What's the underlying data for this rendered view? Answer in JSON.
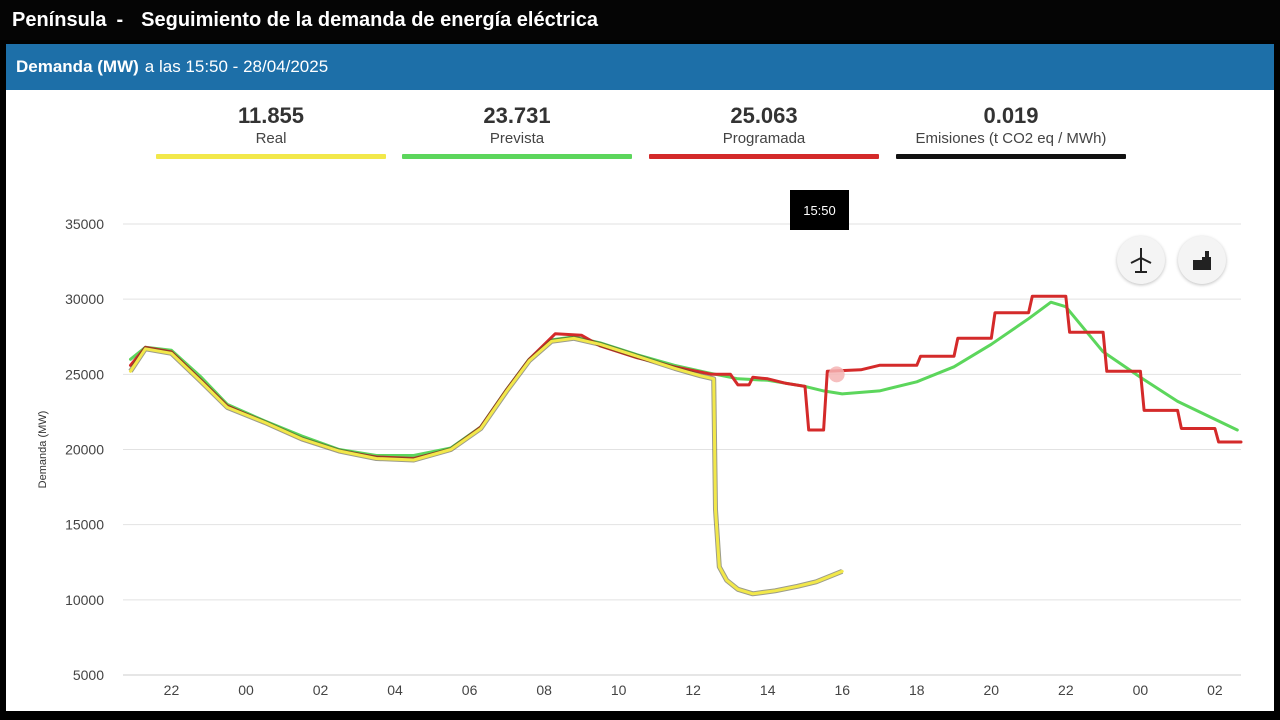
{
  "window": {
    "region": "Península",
    "separator": "-",
    "title": "Seguimiento de la demanda de energía eléctrica"
  },
  "header": {
    "bold": "Demanda (MW)",
    "rest": "a las 15:50 - 28/04/2025"
  },
  "kpis": [
    {
      "value": "11.855",
      "label": "Real",
      "color": "#f2e84a"
    },
    {
      "value": "23.731",
      "label": "Prevista",
      "color": "#5cd65c"
    },
    {
      "value": "25.063",
      "label": "Programada",
      "color": "#d42a2a"
    },
    {
      "value": "0.019",
      "label": "Emisiones (t CO2 eq / MWh)",
      "color": "#111111"
    }
  ],
  "tooltip": {
    "text": "15:50"
  },
  "icons": {
    "left": "wind-turbine-icon",
    "right": "factory-icon"
  },
  "chart_data": {
    "type": "line",
    "ylabel": "Demanda (MW)",
    "ylim": [
      5000,
      35000
    ],
    "yticks": [
      5000,
      10000,
      15000,
      20000,
      25000,
      30000,
      35000
    ],
    "xlim": [
      -3.3,
      26.7
    ],
    "xticks": [
      {
        "h": -2,
        "label": "22"
      },
      {
        "h": 0,
        "label": "00"
      },
      {
        "h": 2,
        "label": "02"
      },
      {
        "h": 4,
        "label": "04"
      },
      {
        "h": 6,
        "label": "06"
      },
      {
        "h": 8,
        "label": "08"
      },
      {
        "h": 10,
        "label": "10"
      },
      {
        "h": 12,
        "label": "12"
      },
      {
        "h": 14,
        "label": "14"
      },
      {
        "h": 16,
        "label": "16"
      },
      {
        "h": 18,
        "label": "18"
      },
      {
        "h": 20,
        "label": "20"
      },
      {
        "h": 22,
        "label": "22"
      },
      {
        "h": 24,
        "label": "00"
      },
      {
        "h": 26,
        "label": "02"
      }
    ],
    "x_unit": "hours from 00:00 on 28/04/2025",
    "grid": true,
    "series": [
      {
        "name": "Prevista",
        "color": "#5cd65c",
        "points": [
          [
            -3.1,
            26000
          ],
          [
            -2.7,
            26800
          ],
          [
            -2,
            26600
          ],
          [
            -1.2,
            24800
          ],
          [
            -0.5,
            23000
          ],
          [
            0.5,
            21900
          ],
          [
            1.5,
            20900
          ],
          [
            2.5,
            20000
          ],
          [
            3.5,
            19600
          ],
          [
            4.5,
            19600
          ],
          [
            5.5,
            20100
          ],
          [
            6.3,
            21500
          ],
          [
            7,
            24000
          ],
          [
            7.6,
            26000
          ],
          [
            8.2,
            27300
          ],
          [
            8.8,
            27500
          ],
          [
            9.5,
            27100
          ],
          [
            10.5,
            26300
          ],
          [
            11.5,
            25600
          ],
          [
            12.4,
            25100
          ],
          [
            13.2,
            24700
          ],
          [
            14,
            24600
          ],
          [
            15,
            24200
          ],
          [
            15.5,
            23900
          ],
          [
            16,
            23700
          ],
          [
            17,
            23900
          ],
          [
            18,
            24500
          ],
          [
            19,
            25500
          ],
          [
            20,
            27000
          ],
          [
            21,
            28700
          ],
          [
            21.6,
            29800
          ],
          [
            22,
            29500
          ],
          [
            23,
            26500
          ],
          [
            24,
            24800
          ],
          [
            25,
            23200
          ],
          [
            26.6,
            21300
          ]
        ]
      },
      {
        "name": "Programada",
        "color": "#d42a2a",
        "points": [
          [
            -3.1,
            25600
          ],
          [
            -2.7,
            26800
          ],
          [
            -2,
            26500
          ],
          [
            -1.2,
            24600
          ],
          [
            -0.5,
            22900
          ],
          [
            0.5,
            21800
          ],
          [
            1.5,
            20700
          ],
          [
            2.5,
            19900
          ],
          [
            3.5,
            19500
          ],
          [
            4.5,
            19400
          ],
          [
            5.5,
            20000
          ],
          [
            6.3,
            21500
          ],
          [
            7,
            24000
          ],
          [
            7.6,
            26000
          ],
          [
            8.3,
            27700
          ],
          [
            9,
            27600
          ],
          [
            9.5,
            26900
          ],
          [
            10.5,
            26100
          ],
          [
            11.5,
            25500
          ],
          [
            12.5,
            25000
          ],
          [
            13,
            25000
          ],
          [
            13.2,
            24300
          ],
          [
            13.5,
            24300
          ],
          [
            13.6,
            24800
          ],
          [
            14,
            24700
          ],
          [
            14.5,
            24400
          ],
          [
            15,
            24200
          ],
          [
            15.1,
            21300
          ],
          [
            15.5,
            21300
          ],
          [
            15.6,
            25200
          ],
          [
            16.5,
            25300
          ],
          [
            17,
            25600
          ],
          [
            18,
            25600
          ],
          [
            18.1,
            26200
          ],
          [
            19,
            26200
          ],
          [
            19.1,
            27400
          ],
          [
            20,
            27400
          ],
          [
            20.1,
            29100
          ],
          [
            21,
            29100
          ],
          [
            21.1,
            30200
          ],
          [
            22,
            30200
          ],
          [
            22.1,
            27800
          ],
          [
            23,
            27800
          ],
          [
            23.1,
            25200
          ],
          [
            24,
            25200
          ],
          [
            24.1,
            22600
          ],
          [
            25,
            22600
          ],
          [
            25.1,
            21400
          ],
          [
            26,
            21400
          ],
          [
            26.1,
            20500
          ],
          [
            26.7,
            20500
          ]
        ]
      },
      {
        "name": "Real",
        "color": "#f2e84a",
        "points": [
          [
            -3.1,
            25200
          ],
          [
            -2.7,
            26700
          ],
          [
            -2,
            26400
          ],
          [
            -1.2,
            24500
          ],
          [
            -0.5,
            22800
          ],
          [
            0.5,
            21800
          ],
          [
            1.5,
            20700
          ],
          [
            2.5,
            19900
          ],
          [
            3.5,
            19400
          ],
          [
            4.5,
            19300
          ],
          [
            5.5,
            20000
          ],
          [
            6.3,
            21400
          ],
          [
            7,
            23900
          ],
          [
            7.6,
            25900
          ],
          [
            8.2,
            27200
          ],
          [
            8.8,
            27400
          ],
          [
            9.5,
            27000
          ],
          [
            10.5,
            26200
          ],
          [
            11.5,
            25400
          ],
          [
            12.2,
            24900
          ],
          [
            12.55,
            24700
          ],
          [
            12.6,
            16000
          ],
          [
            12.7,
            12200
          ],
          [
            12.9,
            11300
          ],
          [
            13.2,
            10700
          ],
          [
            13.6,
            10400
          ],
          [
            14.2,
            10600
          ],
          [
            14.8,
            10900
          ],
          [
            15.3,
            11200
          ],
          [
            15.8,
            11700
          ],
          [
            16,
            11900
          ]
        ]
      }
    ],
    "marker": {
      "h": 15.85,
      "y": 25000,
      "color": "#f4b4b4"
    }
  }
}
